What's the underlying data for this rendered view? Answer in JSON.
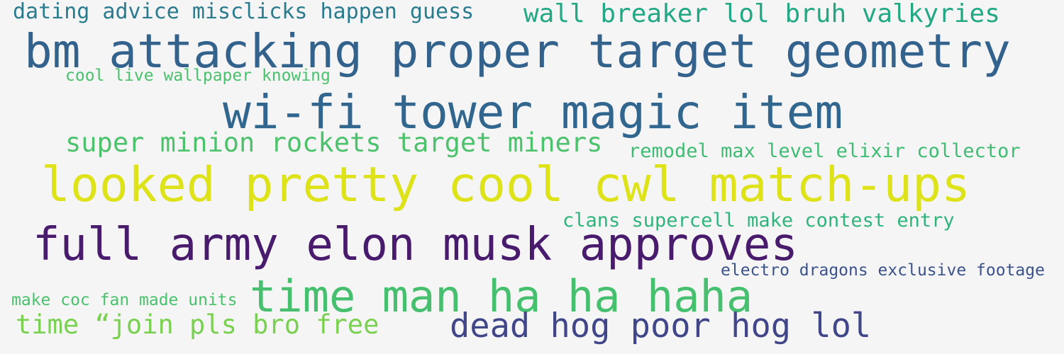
{
  "words": [
    {
      "text": "dating advice misclicks happen guess",
      "color": "#2a7b8e"
    },
    {
      "text": "wall breaker lol bruh valkyries",
      "color": "#22a884"
    },
    {
      "text": "bm attacking proper target geometry",
      "color": "#33638d"
    },
    {
      "text": "cool live wallpaper knowing",
      "color": "#4ac16d"
    },
    {
      "text": "wi-fi tower magic item",
      "color": "#31668e"
    },
    {
      "text": "super minion rockets target miners",
      "color": "#4cc26c"
    },
    {
      "text": "remodel max level elixir collector",
      "color": "#3fbc73"
    },
    {
      "text": "looked pretty cool cwl match-ups",
      "color": "#dde318"
    },
    {
      "text": "clans supercell make contest entry",
      "color": "#2fb47c"
    },
    {
      "text": "full army elon musk approves",
      "color": "#481b6d"
    },
    {
      "text": "electro dragons exclusive footage",
      "color": "#3b528b"
    },
    {
      "text": "make coc fan made units",
      "color": "#4ac16d"
    },
    {
      "text": "time man ha ha haha",
      "color": "#46c06f"
    },
    {
      "text": "time “join pls bro free",
      "color": "#7ad151"
    },
    {
      "text": "dead hog poor hog lol",
      "color": "#404688"
    }
  ]
}
